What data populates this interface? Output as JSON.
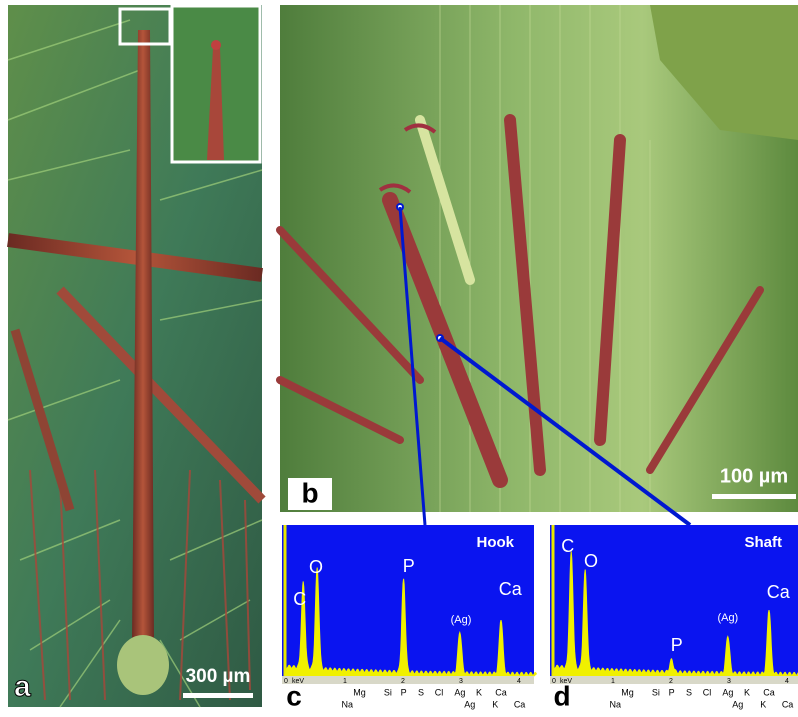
{
  "panels": {
    "a": {
      "label": "a",
      "scale_bar": "300 µm"
    },
    "b": {
      "label": "b",
      "scale_bar": "100 µm"
    },
    "c": {
      "label": "c",
      "title": "Hook",
      "peak_labels": [
        "C",
        "O",
        "P",
        "(Ag)",
        "Ca"
      ],
      "axis_ticks": [
        "0",
        "keV",
        "1",
        "2",
        "3",
        "4"
      ],
      "elements_top": [
        "Mg",
        "Si",
        "P",
        "S",
        "Cl",
        "Ag",
        "K",
        "Ca"
      ],
      "elements_bottom": [
        "Na",
        "Ag",
        "K",
        "Ca"
      ]
    },
    "d": {
      "label": "d",
      "title": "Shaft",
      "peak_labels": [
        "C",
        "O",
        "P",
        "(Ag)",
        "Ca"
      ],
      "axis_ticks": [
        "0",
        "keV",
        "1",
        "2",
        "3",
        "4"
      ],
      "elements_top": [
        "Mg",
        "Si",
        "P",
        "S",
        "Cl",
        "Ag",
        "K",
        "Ca"
      ],
      "elements_bottom": [
        "Na",
        "Ag",
        "K",
        "Ca"
      ]
    }
  }
}
